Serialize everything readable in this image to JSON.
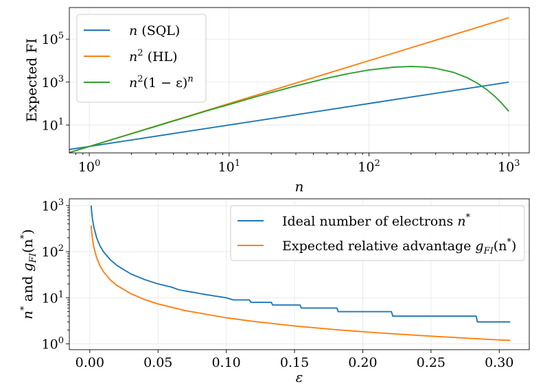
{
  "chart_data": [
    {
      "type": "line",
      "xscale": "log",
      "yscale": "log",
      "xlabel": "n",
      "ylabel": "Expected FI",
      "xlim": [
        0.72,
        1400
      ],
      "ylim": [
        0.5,
        3000000
      ],
      "grid": true,
      "legend": "top-left",
      "xticks": [
        {
          "value": 1,
          "base": "10",
          "exp": "0"
        },
        {
          "value": 10,
          "base": "10",
          "exp": "1"
        },
        {
          "value": 100,
          "base": "10",
          "exp": "2"
        },
        {
          "value": 1000,
          "base": "10",
          "exp": "3"
        }
      ],
      "yticks": [
        {
          "value": 10,
          "base": "10",
          "exp": "1"
        },
        {
          "value": 1000,
          "base": "10",
          "exp": "3"
        },
        {
          "value": 100000,
          "base": "10",
          "exp": "5"
        }
      ],
      "series": [
        {
          "name": "n (SQL)",
          "label_parts": {
            "math": "n",
            "rest": " (SQL)"
          },
          "color": "#1f77b4",
          "x": [
            0.72,
            1,
            2,
            5,
            10,
            20,
            50,
            100,
            200,
            500,
            1000
          ],
          "y": [
            0.72,
            1,
            2,
            5,
            10,
            20,
            50,
            100,
            200,
            500,
            1000
          ]
        },
        {
          "name": "n² (HL)",
          "label_parts": {
            "math": "n",
            "sup": "2",
            "rest": " (HL)"
          },
          "color": "#ff7f0e",
          "x": [
            0.72,
            1,
            2,
            5,
            10,
            20,
            50,
            100,
            200,
            500,
            1000
          ],
          "y": [
            0.52,
            1,
            4,
            25,
            100,
            400,
            2500,
            10000,
            40000,
            250000,
            1000000
          ]
        },
        {
          "name": "n²(1 − ε)ⁿ",
          "label_parts": {
            "math": "n",
            "sup": "2",
            "rest": "(1 − ε)",
            "sup2": "n"
          },
          "color": "#2ca02c",
          "epsilon": 0.01,
          "x": [
            0.72,
            1,
            2,
            3,
            5,
            7,
            10,
            15,
            20,
            30,
            50,
            70,
            100,
            150,
            200,
            250,
            300,
            400,
            500,
            600,
            700,
            800,
            900,
            1000
          ],
          "y": [
            0.52,
            0.99,
            3.92,
            8.73,
            23.8,
            46.6,
            90.4,
            194,
            327,
            666,
            1513,
            2429,
            3660,
            4960,
            5360,
            5080,
            4410,
            2870,
            1640,
            867,
            429,
            206,
            95.5,
            43.2
          ]
        }
      ]
    },
    {
      "type": "line",
      "xscale": "linear",
      "yscale": "log",
      "xlabel": "ε",
      "ylabel_parts": {
        "a": "n",
        "a_sup": "*",
        "mid": " and ",
        "b": "g",
        "b_sub": "FI",
        "c": "(n",
        "c_sup": "*",
        "d": ")"
      },
      "xlim": [
        -0.015,
        0.322
      ],
      "ylim": [
        0.75,
        1400
      ],
      "grid": true,
      "legend": "top-right",
      "xticks": [
        "0.00",
        "0.05",
        "0.10",
        "0.15",
        "0.20",
        "0.25",
        "0.30"
      ],
      "yticks": [
        {
          "value": 1,
          "base": "10",
          "exp": "0"
        },
        {
          "value": 10,
          "base": "10",
          "exp": "1"
        },
        {
          "value": 100,
          "base": "10",
          "exp": "2"
        },
        {
          "value": 1000,
          "base": "10",
          "exp": "3"
        }
      ],
      "series": [
        {
          "name": "Ideal number of electrons n*",
          "label_parts": {
            "text": "Ideal number of electrons ",
            "math": "n",
            "sup": "*"
          },
          "color": "#1f77b4",
          "style": "steps",
          "x": [
            0.001,
            0.0015,
            0.002,
            0.003,
            0.005,
            0.0075,
            0.01,
            0.015,
            0.02,
            0.03,
            0.04,
            0.05,
            0.06,
            0.065,
            0.07,
            0.077,
            0.083,
            0.091,
            0.1,
            0.105,
            0.117,
            0.118,
            0.133,
            0.134,
            0.154,
            0.155,
            0.181,
            0.182,
            0.221,
            0.222,
            0.283,
            0.284,
            0.308
          ],
          "y": [
            1000,
            667,
            500,
            333,
            200,
            133,
            100,
            67,
            50,
            33,
            25,
            20,
            17,
            15,
            14,
            13,
            12,
            11,
            10,
            9,
            9,
            8,
            8,
            7,
            7,
            6,
            6,
            5,
            5,
            4,
            4,
            3,
            3
          ]
        },
        {
          "name": "Expected relative advantage g_FI(n*)",
          "label_parts": {
            "text": "Expected relative advantage ",
            "math": "g",
            "sub": "FI",
            "rest": "(n",
            "sup": "*",
            "end": ")"
          },
          "color": "#ff7f0e",
          "x": [
            0.001,
            0.0015,
            0.002,
            0.003,
            0.005,
            0.0075,
            0.01,
            0.015,
            0.02,
            0.03,
            0.04,
            0.05,
            0.07,
            0.1,
            0.12,
            0.15,
            0.18,
            0.2,
            0.22,
            0.25,
            0.28,
            0.3,
            0.308
          ],
          "y": [
            368,
            245,
            184,
            123,
            73.6,
            49.1,
            36.8,
            24.5,
            18.4,
            12.3,
            9.2,
            7.36,
            5.26,
            3.68,
            3.07,
            2.45,
            2.04,
            1.84,
            1.67,
            1.47,
            1.31,
            1.22,
            1.19
          ]
        }
      ]
    }
  ]
}
